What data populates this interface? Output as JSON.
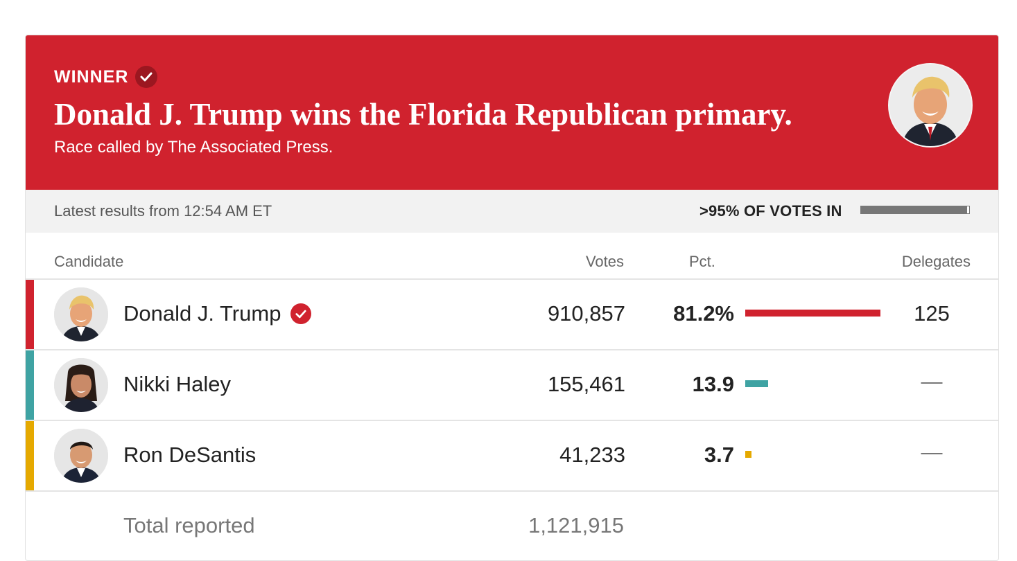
{
  "banner": {
    "winner_label": "WINNER",
    "headline": "Donald J. Trump wins the Florida Republican primary.",
    "subhead": "Race called by The Associated Press.",
    "color": "#d0222e"
  },
  "status": {
    "latest": "Latest results from 12:54 AM ET",
    "votes_in": ">95% OF VOTES IN",
    "reporting_pct": 98
  },
  "table": {
    "headers": {
      "candidate": "Candidate",
      "votes": "Votes",
      "pct": "Pct.",
      "delegates": "Delegates"
    },
    "rows": [
      {
        "name": "Donald J. Trump",
        "votes": "910,857",
        "pct": "81.2%",
        "pct_value": 81.2,
        "delegates": "125",
        "winner": true,
        "color": "#d0222e"
      },
      {
        "name": "Nikki Haley",
        "votes": "155,461",
        "pct": "13.9",
        "pct_value": 13.9,
        "delegates": "—",
        "winner": false,
        "color": "#3fa3a3"
      },
      {
        "name": "Ron DeSantis",
        "votes": "41,233",
        "pct": "3.7",
        "pct_value": 3.7,
        "delegates": "—",
        "winner": false,
        "color": "#e5a900"
      }
    ],
    "total": {
      "label": "Total reported",
      "votes": "1,121,915"
    }
  }
}
